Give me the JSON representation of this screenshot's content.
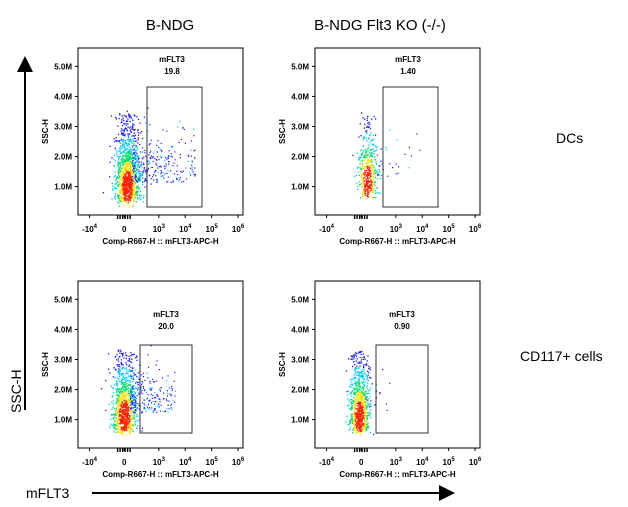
{
  "columns": [
    "B-NDG",
    "B-NDG Flt3 KO (-/-)"
  ],
  "rows": [
    "DCs",
    "CD117+ cells"
  ],
  "y_axis_big": "SSC-H",
  "x_axis_big": "mFLT3",
  "colors": {
    "low": "#1a1aff",
    "mid": "#00c8ff",
    "mid2": "#00e070",
    "high": "#ffe000",
    "peak": "#ff2000"
  },
  "chart_data": [
    {
      "type": "scatter",
      "column": "B-NDG",
      "row": "DCs",
      "xlabel": "Comp-R667-H :: mFLT3-APC-H",
      "ylabel": "SSC-H",
      "yticks": [
        "1.0M",
        "2.0M",
        "3.0M",
        "4.0M",
        "5.0M"
      ],
      "xticks": [
        "-10^4",
        "0",
        "10^3",
        "10^4",
        "10^5",
        "10^6"
      ],
      "gate": {
        "name": "mFLT3",
        "value": "19.8"
      }
    },
    {
      "type": "scatter",
      "column": "B-NDG Flt3 KO (-/-)",
      "row": "DCs",
      "xlabel": "Comp-R667-H :: mFLT3-APC-H",
      "ylabel": "SSC-H",
      "yticks": [
        "1.0M",
        "2.0M",
        "3.0M",
        "4.0M",
        "5.0M"
      ],
      "xticks": [
        "-10^4",
        "0",
        "10^3",
        "10^4",
        "10^5",
        "10^6"
      ],
      "gate": {
        "name": "mFLT3",
        "value": "1.40"
      }
    },
    {
      "type": "scatter",
      "column": "B-NDG",
      "row": "CD117+ cells",
      "xlabel": "Comp-R667-H :: mFLT3-APC-H",
      "ylabel": "SSC-H",
      "yticks": [
        "1.0M",
        "2.0M",
        "3.0M",
        "4.0M",
        "5.0M"
      ],
      "xticks": [
        "-10^4",
        "0",
        "10^3",
        "10^4",
        "10^5",
        "10^6"
      ],
      "gate": {
        "name": "mFLT3",
        "value": "20.0"
      }
    },
    {
      "type": "scatter",
      "column": "B-NDG Flt3 KO (-/-)",
      "row": "CD117+ cells",
      "xlabel": "Comp-R667-H :: mFLT3-APC-H",
      "ylabel": "SSC-H",
      "yticks": [
        "1.0M",
        "2.0M",
        "3.0M",
        "4.0M",
        "5.0M"
      ],
      "xticks": [
        "-10^4",
        "0",
        "10^3",
        "10^4",
        "10^5",
        "10^6"
      ],
      "gate": {
        "name": "mFLT3",
        "value": "0.90"
      }
    }
  ]
}
